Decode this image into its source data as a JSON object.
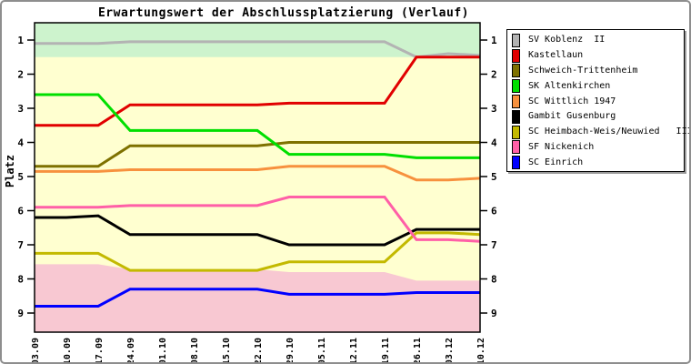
{
  "window": {
    "border_color": "#8e8e8e",
    "background": "#ffffff"
  },
  "chart": {
    "title": "Erwartungswert der Abschlussplatzierung (Verlauf)",
    "ylabel": "Platz"
  },
  "chart_data": {
    "type": "line",
    "title": "Erwartungswert der Abschlussplatzierung (Verlauf)",
    "xlabel": "",
    "ylabel": "Platz",
    "y_axis_inverted": true,
    "ylim": [
      0.5,
      9.65
    ],
    "y_ticks": [
      "1",
      "2",
      "3",
      "4",
      "5",
      "6",
      "7",
      "8",
      "9"
    ],
    "grid": false,
    "legend_position": "outside-right",
    "categories": [
      "03.09",
      "10.09",
      "17.09",
      "24.09",
      "01.10",
      "08.10",
      "15.10",
      "22.10",
      "29.10",
      "05.11",
      "12.11",
      "19.11",
      "26.11",
      "03.12",
      "10.12"
    ],
    "series": [
      {
        "name": "SV Koblenz  II",
        "color": "#b3b3b3",
        "values": [
          1.1,
          1.1,
          1.1,
          1.05,
          1.05,
          1.05,
          1.05,
          1.05,
          1.05,
          1.05,
          1.05,
          1.05,
          1.5,
          1.4,
          1.45
        ]
      },
      {
        "name": "Kastellaun",
        "color": "#e10000",
        "values": [
          3.5,
          3.5,
          3.5,
          2.9,
          2.9,
          2.9,
          2.9,
          2.9,
          2.85,
          2.85,
          2.85,
          2.85,
          1.5,
          1.5,
          1.5
        ]
      },
      {
        "name": "Schweich-Trittenheim",
        "color": "#7e7100",
        "values": [
          4.7,
          4.7,
          4.7,
          4.1,
          4.1,
          4.1,
          4.1,
          4.1,
          4.0,
          4.0,
          4.0,
          4.0,
          4.0,
          4.0,
          4.0
        ]
      },
      {
        "name": "SK Altenkirchen",
        "color": "#00df00",
        "values": [
          2.6,
          2.6,
          2.6,
          3.65,
          3.65,
          3.65,
          3.65,
          3.65,
          4.35,
          4.35,
          4.35,
          4.35,
          4.45,
          4.45,
          4.45
        ]
      },
      {
        "name": "SC Wittlich 1947",
        "color": "#f7913e",
        "values": [
          4.85,
          4.85,
          4.85,
          4.8,
          4.8,
          4.8,
          4.8,
          4.8,
          4.7,
          4.7,
          4.7,
          4.7,
          5.1,
          5.1,
          5.05
        ]
      },
      {
        "name": "Gambit Gusenburg",
        "color": "#000000",
        "values": [
          6.2,
          6.2,
          6.15,
          6.7,
          6.7,
          6.7,
          6.7,
          6.7,
          7.0,
          7.0,
          7.0,
          7.0,
          6.55,
          6.55,
          6.55
        ]
      },
      {
        "name": "SC Heimbach-Weis/Neuwied   III",
        "color": "#c3b900",
        "values": [
          7.25,
          7.25,
          7.25,
          7.75,
          7.75,
          7.75,
          7.75,
          7.75,
          7.5,
          7.5,
          7.5,
          7.5,
          6.65,
          6.65,
          6.7
        ]
      },
      {
        "name": "SF Nickenich",
        "color": "#ff5fa7",
        "values": [
          5.9,
          5.9,
          5.9,
          5.85,
          5.85,
          5.85,
          5.85,
          5.85,
          5.6,
          5.6,
          5.6,
          5.6,
          6.85,
          6.85,
          6.9
        ]
      },
      {
        "name": "SC Einrich",
        "color": "#0000ff",
        "values": [
          8.8,
          8.8,
          8.8,
          8.3,
          8.3,
          8.3,
          8.3,
          8.3,
          8.45,
          8.45,
          8.45,
          8.45,
          8.4,
          8.4,
          8.4
        ]
      }
    ],
    "bands": {
      "promotion_zone": {
        "color": "#cdf3cd",
        "from_platz": 0.5,
        "to_platz": 1.5
      },
      "mid_zone": {
        "color": "#ffffd0"
      },
      "relegation_zone": {
        "color": "#f8c8d2",
        "boundary_platz": [
          7.57,
          7.57,
          7.57,
          7.72,
          7.72,
          7.72,
          7.72,
          7.72,
          7.8,
          7.8,
          7.8,
          7.8,
          8.05,
          8.05,
          8.05
        ]
      }
    }
  }
}
